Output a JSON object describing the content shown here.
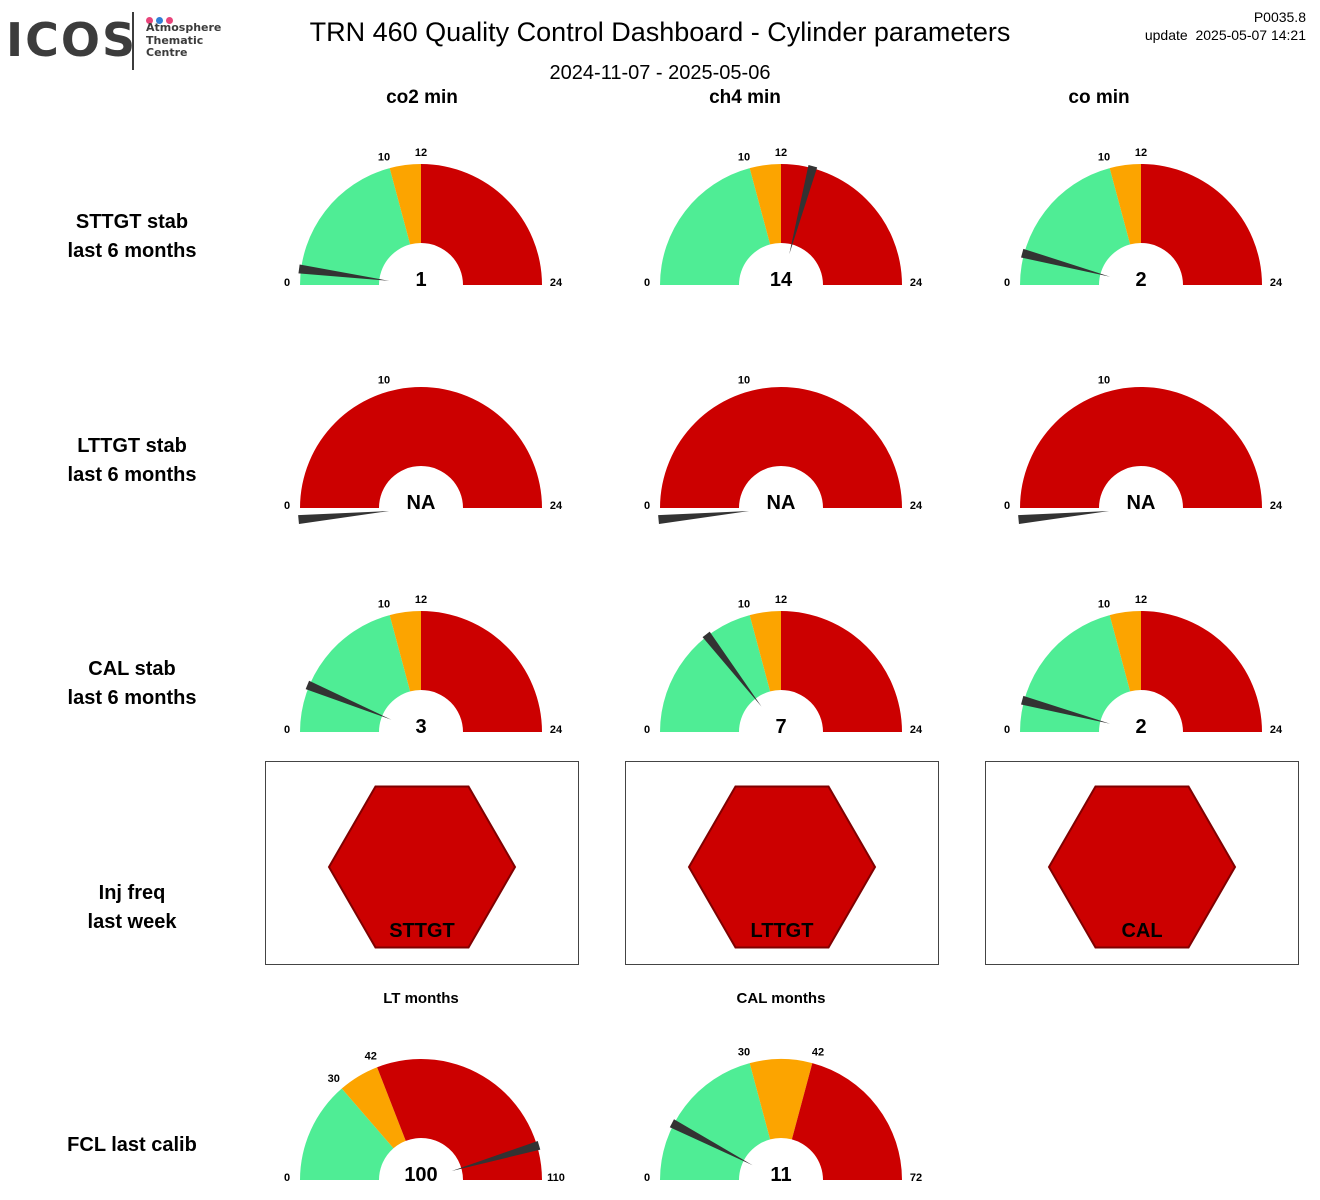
{
  "logo": {
    "wordmark": "ICOS",
    "line1": "Atmosphere",
    "line2": "Thematic",
    "line3": "Centre",
    "dot_colors": [
      "#e8447a",
      "#2f7fd6",
      "#e8447a"
    ]
  },
  "header": {
    "title": "TRN 460 Quality Control Dashboard - Cylinder parameters",
    "period": "2024-11-07 - 2025-05-06",
    "version": "P0035.8",
    "update": "update  2025-05-07 14:21"
  },
  "columns": [
    "co2 min",
    "ch4 min",
    "co min"
  ],
  "rows": {
    "sttgt": [
      "STTGT stab",
      "last 6 months"
    ],
    "lttgt": [
      "LTTGT stab",
      "last 6 months"
    ],
    "cal": [
      "CAL stab",
      "last 6 months"
    ],
    "inj": [
      "Inj freq",
      "last week"
    ],
    "fcl": [
      "FCL last calib"
    ]
  },
  "colors": {
    "green": "#4fed95",
    "orange": "#fca400",
    "red": "#cc0000",
    "needle": "#333333",
    "hex_border": "#800000"
  },
  "chart_data": [
    {
      "type": "gauge",
      "row": "STTGT stab last 6 months",
      "column": "co2 min",
      "min": 0,
      "max": 24,
      "value": 1,
      "value_label": "1",
      "bands": [
        {
          "from": 0,
          "to": 10,
          "color": "green"
        },
        {
          "from": 10,
          "to": 12,
          "color": "orange"
        },
        {
          "from": 12,
          "to": 24,
          "color": "red"
        }
      ],
      "tick_labels": [
        "0",
        "10",
        "12",
        "24"
      ]
    },
    {
      "type": "gauge",
      "row": "STTGT stab last 6 months",
      "column": "ch4 min",
      "min": 0,
      "max": 24,
      "value": 14,
      "value_label": "14",
      "bands": [
        {
          "from": 0,
          "to": 10,
          "color": "green"
        },
        {
          "from": 10,
          "to": 12,
          "color": "orange"
        },
        {
          "from": 12,
          "to": 24,
          "color": "red"
        }
      ],
      "tick_labels": [
        "0",
        "10",
        "12",
        "24"
      ]
    },
    {
      "type": "gauge",
      "row": "STTGT stab last 6 months",
      "column": "co min",
      "min": 0,
      "max": 24,
      "value": 2,
      "value_label": "2",
      "bands": [
        {
          "from": 0,
          "to": 10,
          "color": "green"
        },
        {
          "from": 10,
          "to": 12,
          "color": "orange"
        },
        {
          "from": 12,
          "to": 24,
          "color": "red"
        }
      ],
      "tick_labels": [
        "0",
        "10",
        "12",
        "24"
      ]
    },
    {
      "type": "gauge",
      "row": "LTTGT stab last 6 months",
      "column": "co2 min",
      "min": 0,
      "max": 24,
      "value": 0,
      "value_label": "NA",
      "bands": [
        {
          "from": 0,
          "to": 24,
          "color": "red"
        }
      ],
      "tick_labels": [
        "0",
        "10",
        "24"
      ]
    },
    {
      "type": "gauge",
      "row": "LTTGT stab last 6 months",
      "column": "ch4 min",
      "min": 0,
      "max": 24,
      "value": 0,
      "value_label": "NA",
      "bands": [
        {
          "from": 0,
          "to": 24,
          "color": "red"
        }
      ],
      "tick_labels": [
        "0",
        "10",
        "24"
      ]
    },
    {
      "type": "gauge",
      "row": "LTTGT stab last 6 months",
      "column": "co min",
      "min": 0,
      "max": 24,
      "value": 0,
      "value_label": "NA",
      "bands": [
        {
          "from": 0,
          "to": 24,
          "color": "red"
        }
      ],
      "tick_labels": [
        "0",
        "10",
        "24"
      ]
    },
    {
      "type": "gauge",
      "row": "CAL stab last 6 months",
      "column": "co2 min",
      "min": 0,
      "max": 24,
      "value": 3,
      "value_label": "3",
      "bands": [
        {
          "from": 0,
          "to": 10,
          "color": "green"
        },
        {
          "from": 10,
          "to": 12,
          "color": "orange"
        },
        {
          "from": 12,
          "to": 24,
          "color": "red"
        }
      ],
      "tick_labels": [
        "0",
        "10",
        "12",
        "24"
      ]
    },
    {
      "type": "gauge",
      "row": "CAL stab last 6 months",
      "column": "ch4 min",
      "min": 0,
      "max": 24,
      "value": 7,
      "value_label": "7",
      "bands": [
        {
          "from": 0,
          "to": 10,
          "color": "green"
        },
        {
          "from": 10,
          "to": 12,
          "color": "orange"
        },
        {
          "from": 12,
          "to": 24,
          "color": "red"
        }
      ],
      "tick_labels": [
        "0",
        "10",
        "12",
        "24"
      ]
    },
    {
      "type": "gauge",
      "row": "CAL stab last 6 months",
      "column": "co min",
      "min": 0,
      "max": 24,
      "value": 2,
      "value_label": "2",
      "bands": [
        {
          "from": 0,
          "to": 10,
          "color": "green"
        },
        {
          "from": 10,
          "to": 12,
          "color": "orange"
        },
        {
          "from": 12,
          "to": 24,
          "color": "red"
        }
      ],
      "tick_labels": [
        "0",
        "10",
        "12",
        "24"
      ]
    },
    {
      "type": "status",
      "row": "Inj freq last week",
      "label": "STTGT",
      "color": "red"
    },
    {
      "type": "status",
      "row": "Inj freq last week",
      "label": "LTTGT",
      "color": "red"
    },
    {
      "type": "status",
      "row": "Inj freq last week",
      "label": "CAL",
      "color": "red"
    },
    {
      "type": "gauge",
      "row": "FCL last calib",
      "title": "LT months",
      "min": 0,
      "max": 110,
      "value": 100,
      "value_label": "100",
      "bands": [
        {
          "from": 0,
          "to": 30,
          "color": "green"
        },
        {
          "from": 30,
          "to": 42,
          "color": "orange"
        },
        {
          "from": 42,
          "to": 110,
          "color": "red"
        }
      ],
      "tick_labels": [
        "0",
        "30",
        "42",
        "110"
      ]
    },
    {
      "type": "gauge",
      "row": "FCL last calib",
      "title": "CAL months",
      "min": 0,
      "max": 72,
      "value": 11,
      "value_label": "11",
      "bands": [
        {
          "from": 0,
          "to": 30,
          "color": "green"
        },
        {
          "from": 30,
          "to": 42,
          "color": "orange"
        },
        {
          "from": 42,
          "to": 72,
          "color": "red"
        }
      ],
      "tick_labels": [
        "0",
        "30",
        "42",
        "72"
      ]
    }
  ]
}
